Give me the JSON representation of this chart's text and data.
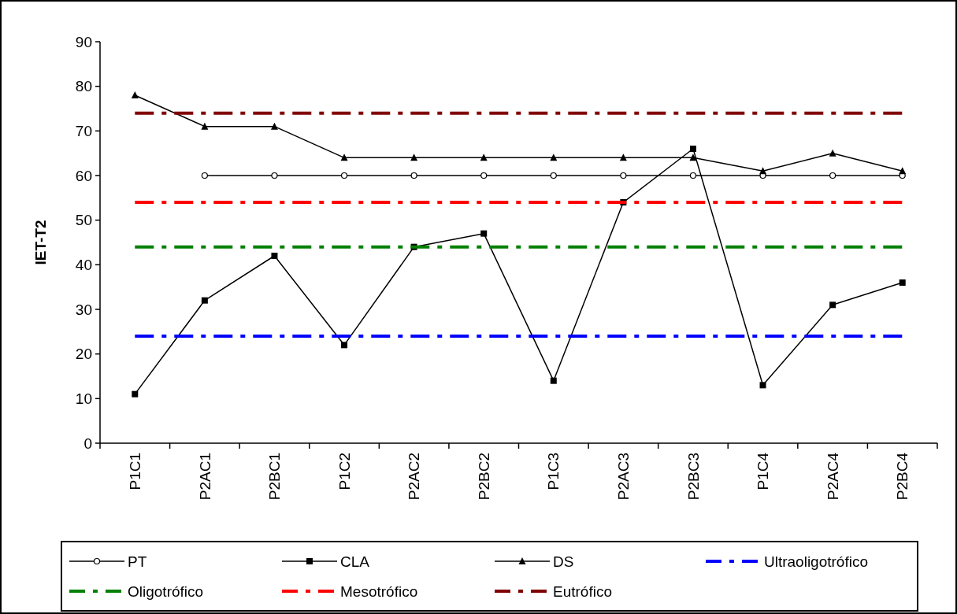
{
  "chart_data": {
    "type": "line",
    "ylabel": "IET-T2",
    "categories": [
      "P1C1",
      "P2AC1",
      "P2BC1",
      "P1C2",
      "P2AC2",
      "P2BC2",
      "P1C3",
      "P2AC3",
      "P2BC3",
      "P1C4",
      "P2AC4",
      "P2BC4"
    ],
    "ylim": [
      0,
      90
    ],
    "yticks": [
      0,
      10,
      20,
      30,
      40,
      50,
      60,
      70,
      80,
      90
    ],
    "legend": "bottom",
    "grid": false,
    "series": [
      {
        "name": "PT",
        "color": "#000000",
        "marker": "circle",
        "line_style": "solid",
        "values": [
          null,
          60,
          60,
          60,
          60,
          60,
          60,
          60,
          60,
          60,
          60,
          60
        ]
      },
      {
        "name": "CLA",
        "color": "#000000",
        "marker": "square",
        "line_style": "solid",
        "values": [
          11,
          32,
          42,
          22,
          44,
          47,
          14,
          54,
          66,
          13,
          31,
          36
        ]
      },
      {
        "name": "DS",
        "color": "#000000",
        "marker": "triangle",
        "line_style": "solid",
        "values": [
          78,
          71,
          71,
          64,
          64,
          64,
          64,
          64,
          64,
          61,
          65,
          61
        ]
      },
      {
        "name": "Ultraoligotrófico",
        "color": "#0000ff",
        "marker": "none",
        "line_style": "dashed",
        "values": [
          24,
          24,
          24,
          24,
          24,
          24,
          24,
          24,
          24,
          24,
          24,
          24
        ]
      },
      {
        "name": "Oligotrófico",
        "color": "#008000",
        "marker": "none",
        "line_style": "dashed",
        "values": [
          44,
          44,
          44,
          44,
          44,
          44,
          44,
          44,
          44,
          44,
          44,
          44
        ]
      },
      {
        "name": "Mesotrófico",
        "color": "#ff0000",
        "marker": "none",
        "line_style": "dashed",
        "values": [
          54,
          54,
          54,
          54,
          54,
          54,
          54,
          54,
          54,
          54,
          54,
          54
        ]
      },
      {
        "name": "Eutrófico",
        "color": "#800000",
        "marker": "none",
        "line_style": "dashed",
        "values": [
          74,
          74,
          74,
          74,
          74,
          74,
          74,
          74,
          74,
          74,
          74,
          74
        ]
      }
    ]
  }
}
